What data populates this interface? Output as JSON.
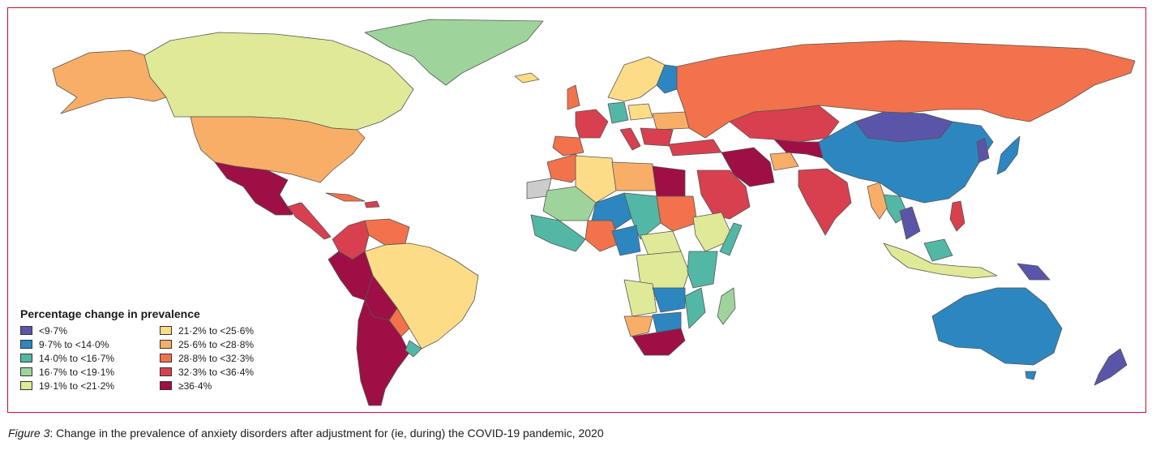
{
  "legend": {
    "title": "Percentage change in prevalence",
    "items": [
      {
        "label": "<9·7%",
        "color": "#5a55a8"
      },
      {
        "label": "9·7% to <14·0%",
        "color": "#2c87c1"
      },
      {
        "label": "14·0% to <16·7%",
        "color": "#52b8a5"
      },
      {
        "label": "16·7% to <19·1%",
        "color": "#9ed49c"
      },
      {
        "label": "19·1% to <21·2%",
        "color": "#dfe997"
      },
      {
        "label": "21·2% to <25·6%",
        "color": "#fddc87"
      },
      {
        "label": "25·6% to <28·8%",
        "color": "#f9ae67"
      },
      {
        "label": "28·8% to <32·3%",
        "color": "#f2724c"
      },
      {
        "label": "32·3% to <36·4%",
        "color": "#d8404f"
      },
      {
        "label": "≥36·4%",
        "color": "#9e0f45"
      }
    ]
  },
  "caption": {
    "label": "Figure 3",
    "text": ": Change in the prevalence of anxiety disorders after adjustment for (ie, during) the COVID-19 pandemic, 2020"
  }
}
